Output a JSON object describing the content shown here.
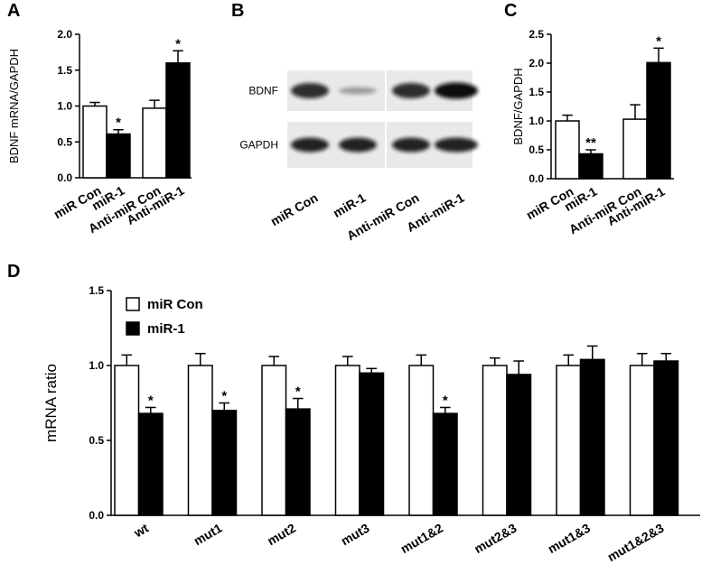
{
  "chart_data": [
    {
      "type": "bar",
      "panel": "A",
      "ylabel": "BDNF mRNA/GAPDH",
      "categories": [
        "miR Con",
        "miR-1",
        "Anti-miR Con",
        "Anti-miR-1"
      ],
      "values": [
        1.0,
        0.61,
        0.97,
        1.6
      ],
      "errors": [
        0.05,
        0.06,
        0.11,
        0.17
      ],
      "colors": [
        "#ffffff",
        "#000000",
        "#ffffff",
        "#000000"
      ],
      "significance": [
        null,
        "*",
        null,
        "*"
      ],
      "ylim": [
        0,
        2.0
      ],
      "yticks": [
        {
          "value": 0,
          "label": "0.0"
        },
        {
          "value": 0.5,
          "label": "0.5"
        },
        {
          "value": 1.0,
          "label": "1.0"
        },
        {
          "value": 1.5,
          "label": "1.5"
        },
        {
          "value": 2.0,
          "label": "2.0"
        }
      ]
    },
    {
      "type": "bar",
      "panel": "C",
      "ylabel": "BDNF/GAPDH",
      "categories": [
        "miR Con",
        "miR-1",
        "Anti-miR Con",
        "Anti-miR-1"
      ],
      "values": [
        1.0,
        0.43,
        1.03,
        2.01
      ],
      "errors": [
        0.1,
        0.07,
        0.25,
        0.25
      ],
      "colors": [
        "#ffffff",
        "#000000",
        "#ffffff",
        "#000000"
      ],
      "significance": [
        null,
        "**",
        null,
        "*"
      ],
      "ylim": [
        0,
        2.5
      ],
      "yticks": [
        {
          "value": 0,
          "label": "0.0"
        },
        {
          "value": 0.5,
          "label": "0.5"
        },
        {
          "value": 1.0,
          "label": "1.0"
        },
        {
          "value": 1.5,
          "label": "1.5"
        },
        {
          "value": 2.0,
          "label": "2.0"
        },
        {
          "value": 2.5,
          "label": "2.5"
        }
      ]
    },
    {
      "type": "grouped_bar",
      "panel": "D",
      "ylabel": "mRNA ratio",
      "categories": [
        "wt",
        "mut1",
        "mut2",
        "mut3",
        "mut1&2",
        "mut2&3",
        "mut1&3",
        "mut1&2&3"
      ],
      "series": [
        {
          "name": "miR Con",
          "color": "#ffffff",
          "values": [
            1.0,
            1.0,
            1.0,
            1.0,
            1.0,
            1.0,
            1.0,
            1.0
          ],
          "errors": [
            0.07,
            0.08,
            0.06,
            0.06,
            0.07,
            0.05,
            0.07,
            0.08
          ],
          "significance": [
            null,
            null,
            null,
            null,
            null,
            null,
            null,
            null
          ]
        },
        {
          "name": "miR-1",
          "color": "#000000",
          "values": [
            0.68,
            0.7,
            0.71,
            0.95,
            0.68,
            0.94,
            1.04,
            1.03
          ],
          "errors": [
            0.04,
            0.05,
            0.07,
            0.03,
            0.04,
            0.09,
            0.09,
            0.05
          ],
          "significance": [
            "*",
            "*",
            "*",
            null,
            "*",
            null,
            null,
            null
          ]
        }
      ],
      "legend": "upper left",
      "ylim": [
        0,
        1.5
      ],
      "yticks": [
        {
          "value": 0,
          "label": "0.0"
        },
        {
          "value": 0.5,
          "label": "0.5"
        },
        {
          "value": 1.0,
          "label": "1.0"
        },
        {
          "value": 1.5,
          "label": "1.5"
        }
      ]
    }
  ],
  "panel_b": {
    "panel": "B",
    "rows": [
      "BDNF",
      "GAPDH"
    ],
    "lanes": [
      "miR Con",
      "miR-1",
      "Anti-miR Con",
      "Anti-miR-1"
    ]
  }
}
